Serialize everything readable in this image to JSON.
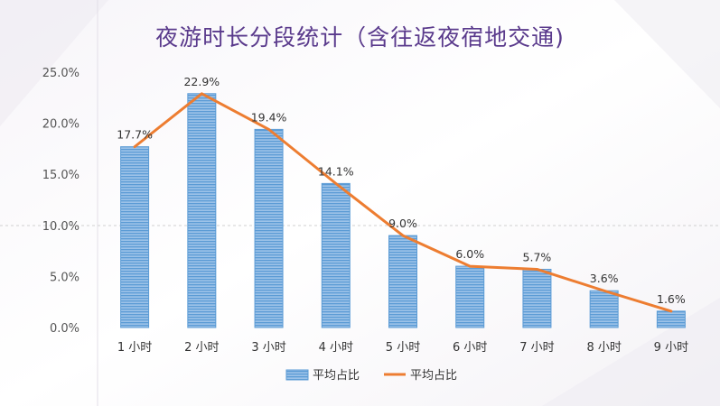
{
  "chart_data": {
    "type": "bar",
    "title": "夜游时长分段统计（含往返夜宿地交通)",
    "categories": [
      "1 小时",
      "2 小时",
      "3 小时",
      "4 小时",
      "5 小时",
      "6 小时",
      "7 小时",
      "8 小时",
      "9 小时"
    ],
    "series": [
      {
        "name": "平均占比",
        "kind": "bar",
        "color": "#5b9bd5",
        "values": [
          17.7,
          22.9,
          19.4,
          14.1,
          9.0,
          6.0,
          5.7,
          3.6,
          1.6
        ]
      },
      {
        "name": "平均占比",
        "kind": "line",
        "color": "#ed7d31",
        "values": [
          17.7,
          22.9,
          19.4,
          14.1,
          9.0,
          6.0,
          5.7,
          3.6,
          1.6
        ]
      }
    ],
    "data_labels": [
      "17.7%",
      "22.9%",
      "19.4%",
      "14.1%",
      "9.0%",
      "6.0%",
      "5.7%",
      "3.6%",
      "1.6%"
    ],
    "yticks": [
      "0.0%",
      "5.0%",
      "10.0%",
      "15.0%",
      "20.0%",
      "25.0%"
    ],
    "ylim": [
      0,
      25
    ],
    "xlabel": "",
    "ylabel": "",
    "legend_position": "bottom",
    "grid": false
  }
}
